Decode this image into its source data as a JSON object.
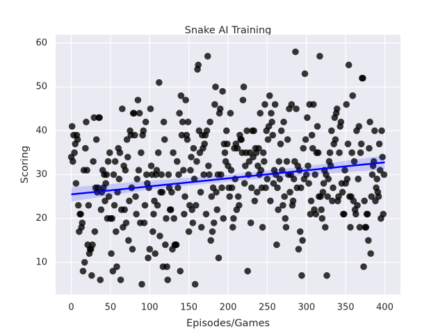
{
  "chart_data": {
    "type": "scatter",
    "title": "Snake AI Training",
    "x_label": "Episodes/Games",
    "y_label": "Scoring",
    "xlim": [
      -20,
      420
    ],
    "ylim": [
      2.7,
      61.9
    ],
    "xticks": [
      0,
      50,
      100,
      150,
      200,
      250,
      300,
      350,
      400
    ],
    "yticks": [
      10,
      20,
      30,
      40,
      50,
      60
    ],
    "grid": true,
    "background": "#eaeaf2",
    "point_color": "#000000",
    "line_color": "#0000ff",
    "band_color": "#0000ff",
    "x": [
      0,
      1,
      2,
      3,
      4,
      5,
      6,
      7,
      8,
      9,
      10,
      11,
      12,
      13,
      14,
      15,
      16,
      17,
      18,
      19,
      20,
      21,
      22,
      23,
      24,
      25,
      26,
      27,
      28,
      29,
      30,
      31,
      32,
      33,
      34,
      35,
      36,
      37,
      38,
      39,
      40,
      41,
      42,
      43,
      44,
      45,
      46,
      47,
      48,
      49,
      50,
      51,
      52,
      53,
      54,
      55,
      56,
      57,
      58,
      59,
      60,
      61,
      62,
      63,
      64,
      65,
      66,
      67,
      68,
      69,
      70,
      71,
      72,
      73,
      74,
      75,
      76,
      77,
      78,
      79,
      80,
      81,
      82,
      83,
      84,
      85,
      86,
      87,
      88,
      89,
      90,
      91,
      92,
      93,
      94,
      95,
      96,
      97,
      98,
      99,
      100,
      101,
      102,
      103,
      104,
      105,
      106,
      107,
      108,
      109,
      110,
      111,
      112,
      113,
      114,
      115,
      116,
      117,
      118,
      119,
      120,
      121,
      122,
      123,
      124,
      125,
      126,
      127,
      128,
      129,
      130,
      131,
      132,
      133,
      134,
      135,
      136,
      137,
      138,
      139,
      140,
      141,
      142,
      143,
      144,
      145,
      146,
      147,
      148,
      149,
      150,
      151,
      152,
      153,
      154,
      155,
      156,
      157,
      158,
      159,
      160,
      161,
      162,
      163,
      164,
      165,
      166,
      167,
      168,
      169,
      170,
      171,
      172,
      173,
      174,
      175,
      176,
      177,
      178,
      179,
      180,
      181,
      182,
      183,
      184,
      185,
      186,
      187,
      188,
      189,
      190,
      191,
      192,
      193,
      194,
      195,
      196,
      197,
      198,
      199,
      200,
      201,
      202,
      203,
      204,
      205,
      206,
      207,
      208,
      209,
      210,
      211,
      212,
      213,
      214,
      215,
      216,
      217,
      218,
      219,
      220,
      221,
      222,
      223,
      224,
      225,
      226,
      227,
      228,
      229,
      230,
      231,
      232,
      233,
      234,
      235,
      236,
      237,
      238,
      239,
      240,
      241,
      242,
      243,
      244,
      245,
      246,
      247,
      248,
      249,
      250,
      251,
      252,
      253,
      254,
      255,
      256,
      257,
      258,
      259,
      260,
      261,
      262,
      263,
      264,
      265,
      266,
      267,
      268,
      269,
      270,
      271,
      272,
      273,
      274,
      275,
      276,
      277,
      278,
      279,
      280,
      281,
      282,
      283,
      284,
      285,
      286,
      287,
      288,
      289,
      290,
      291,
      292,
      293,
      294,
      295,
      296,
      297,
      298,
      299,
      300,
      301,
      302,
      303,
      304,
      305,
      306,
      307,
      308,
      309,
      310,
      311,
      312,
      313,
      314,
      315,
      316,
      317,
      318,
      319,
      320,
      321,
      322,
      323,
      324,
      325,
      326,
      327,
      328,
      329,
      330,
      331,
      332,
      333,
      334,
      335,
      336,
      337,
      338,
      339,
      340,
      341,
      342,
      343,
      344,
      345,
      346,
      347,
      348,
      349,
      350,
      351,
      352,
      353,
      354,
      355,
      356,
      357,
      358,
      359,
      360,
      361,
      362,
      363,
      364,
      365,
      366,
      367,
      368,
      369,
      370,
      371,
      372,
      373,
      374,
      375,
      376,
      377,
      378,
      379,
      380,
      381,
      382,
      383,
      384,
      385,
      386,
      387,
      388,
      389,
      390,
      391,
      392,
      393,
      394,
      395,
      396,
      397,
      398,
      399
    ],
    "values": [
      34,
      41,
      33,
      39,
      35,
      37,
      28,
      39,
      38,
      23,
      17,
      21,
      21,
      18,
      19,
      8,
      31,
      10,
      36,
      42,
      31,
      14,
      23,
      12,
      13,
      13,
      7,
      14,
      33,
      43,
      17,
      27,
      38,
      26,
      27,
      43,
      43,
      6,
      22,
      26,
      31,
      27,
      30,
      24,
      28,
      30,
      20,
      33,
      25,
      35,
      20,
      12,
      20,
      8,
      30,
      23,
      33,
      17,
      9,
      26,
      36,
      29,
      35,
      6,
      22,
      45,
      18,
      32,
      22,
      31,
      19,
      38,
      34,
      15,
      24,
      40,
      39,
      27,
      13,
      44,
      44,
      39,
      25,
      21,
      29,
      47,
      31,
      44,
      19,
      35,
      5,
      39,
      40,
      19,
      23,
      42,
      30,
      28,
      11,
      27,
      13,
      45,
      32,
      30,
      17,
      21,
      24,
      12,
      30,
      31,
      23,
      35,
      51,
      16,
      26,
      30,
      26,
      9,
      42,
      38,
      14,
      20,
      9,
      6,
      30,
      27,
      22,
      22,
      26,
      13,
      35,
      20,
      14,
      14,
      14,
      33,
      27,
      30,
      44,
      8,
      48,
      39,
      42,
      31,
      21,
      25,
      47,
      39,
      38,
      42,
      17,
      23,
      31,
      34,
      22,
      19,
      36,
      29,
      5,
      23,
      33,
      54,
      55,
      40,
      35,
      26,
      18,
      39,
      36,
      30,
      37,
      39,
      21,
      40,
      57,
      32,
      30,
      42,
      15,
      25,
      17,
      27,
      19,
      46,
      50,
      26,
      22,
      30,
      11,
      44,
      45,
      30,
      27,
      49,
      20,
      37,
      35,
      33,
      40,
      37,
      32,
      27,
      25,
      44,
      31,
      27,
      18,
      20,
      36,
      29,
      37,
      22,
      36,
      25,
      23,
      39,
      38,
      38,
      35,
      47,
      50,
      28,
      32,
      35,
      40,
      8,
      30,
      33,
      35,
      19,
      27,
      40,
      34,
      40,
      24,
      36,
      35,
      26,
      32,
      36,
      30,
      44,
      31,
      27,
      18,
      35,
      33,
      46,
      27,
      40,
      29,
      38,
      41,
      48,
      24,
      44,
      42,
      39,
      28,
      31,
      46,
      30,
      14,
      27,
      22,
      33,
      29,
      37,
      40,
      31,
      23,
      42,
      25,
      20,
      18,
      33,
      38,
      30,
      45,
      26,
      30,
      46,
      23,
      24,
      29,
      33,
      58,
      45,
      27,
      32,
      13,
      31,
      17,
      27,
      7,
      15,
      36,
      29,
      53,
      38,
      30,
      43,
      32,
      28,
      46,
      21,
      24,
      39,
      36,
      46,
      22,
      30,
      21,
      35,
      41,
      35,
      25,
      57,
      25,
      22,
      20,
      26,
      28,
      31,
      18,
      30,
      7,
      25,
      29,
      33,
      35,
      32,
      40,
      24,
      27,
      37,
      43,
      38,
      44,
      45,
      24,
      25,
      35,
      41,
      42,
      28,
      26,
      21,
      21,
      31,
      28,
      46,
      29,
      37,
      55,
      25,
      18,
      25,
      35,
      48,
      24,
      33,
      22,
      21,
      40,
      23,
      29,
      41,
      18,
      35,
      37,
      52,
      52,
      9,
      24,
      18,
      18,
      21,
      21,
      15,
      36,
      42,
      12,
      25,
      30,
      32,
      33,
      40,
      24,
      27,
      29,
      26,
      25,
      37,
      31,
      20,
      40,
      34,
      21,
      30
    ],
    "trend": {
      "x": [
        0,
        400
      ],
      "y": [
        25.5,
        32.8
      ]
    },
    "ci": {
      "x": [
        0,
        100,
        200,
        300,
        400
      ],
      "lower": [
        23.9,
        26.6,
        28.4,
        29.9,
        31.2
      ],
      "upper": [
        27.1,
        28.6,
        30.0,
        31.9,
        34.4
      ]
    }
  }
}
